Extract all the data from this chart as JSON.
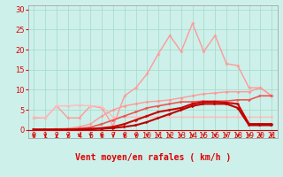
{
  "xlabel": "Vent moyen/en rafales ( km/h )",
  "bg_color": "#cdf0ea",
  "grid_color": "#aaddcc",
  "x_ticks": [
    0,
    1,
    2,
    3,
    4,
    5,
    6,
    7,
    8,
    9,
    10,
    11,
    12,
    13,
    14,
    15,
    16,
    17,
    18,
    19,
    20,
    21
  ],
  "y_ticks": [
    0,
    5,
    10,
    15,
    20,
    25,
    30
  ],
  "ylim": [
    -2,
    31
  ],
  "xlim": [
    -0.5,
    21.5
  ],
  "line_spiky": {
    "x": [
      0,
      1,
      2,
      3,
      4,
      5,
      6,
      7,
      8,
      9,
      10,
      11,
      12,
      13,
      14,
      15,
      16,
      17,
      18,
      19,
      20,
      21
    ],
    "y": [
      3.0,
      3.0,
      6.0,
      3.0,
      3.0,
      6.0,
      5.5,
      1.0,
      8.5,
      10.5,
      14.0,
      19.0,
      23.5,
      19.5,
      26.5,
      19.5,
      23.5,
      16.5,
      16.0,
      10.5,
      10.5,
      8.5
    ],
    "color": "#ff9999",
    "lw": 1.0,
    "marker": "*",
    "ms": 3.5
  },
  "line_medium1": {
    "x": [
      0,
      1,
      2,
      3,
      4,
      5,
      6,
      7,
      8,
      9,
      10,
      11,
      12,
      13,
      14,
      15,
      16,
      17,
      18,
      19,
      20,
      21
    ],
    "y": [
      3.2,
      3.0,
      6.0,
      6.0,
      6.2,
      6.0,
      5.8,
      3.2,
      3.2,
      3.2,
      3.2,
      3.2,
      3.2,
      3.2,
      3.2,
      3.2,
      3.2,
      3.2,
      3.2,
      3.2,
      3.2,
      3.2
    ],
    "color": "#ffbbbb",
    "lw": 1.0,
    "marker": "D",
    "ms": 2.0
  },
  "line_curve1": {
    "x": [
      0,
      1,
      2,
      3,
      4,
      5,
      6,
      7,
      8,
      9,
      10,
      11,
      12,
      13,
      14,
      15,
      16,
      17,
      18,
      19,
      20,
      21
    ],
    "y": [
      0.2,
      0.2,
      0.3,
      0.4,
      0.8,
      1.5,
      3.5,
      5.0,
      6.0,
      6.5,
      7.0,
      7.2,
      7.5,
      8.0,
      8.5,
      9.0,
      9.2,
      9.5,
      9.5,
      9.5,
      10.5,
      8.5
    ],
    "color": "#ff9999",
    "lw": 1.0,
    "marker": "D",
    "ms": 2.0
  },
  "line_curve2": {
    "x": [
      0,
      1,
      2,
      3,
      4,
      5,
      6,
      7,
      8,
      9,
      10,
      11,
      12,
      13,
      14,
      15,
      16,
      17,
      18,
      19,
      20,
      21
    ],
    "y": [
      0.1,
      0.1,
      0.2,
      0.2,
      0.4,
      0.7,
      1.5,
      2.5,
      3.5,
      4.5,
      5.5,
      6.0,
      6.5,
      7.0,
      7.0,
      7.2,
      7.2,
      7.2,
      7.5,
      7.5,
      8.5,
      8.5
    ],
    "color": "#ee5555",
    "lw": 1.2,
    "marker": ">",
    "ms": 2.5
  },
  "line_curve3": {
    "x": [
      0,
      1,
      2,
      3,
      4,
      5,
      6,
      7,
      8,
      9,
      10,
      11,
      12,
      13,
      14,
      15,
      16,
      17,
      18,
      19,
      20,
      21
    ],
    "y": [
      0.1,
      0.1,
      0.1,
      0.1,
      0.2,
      0.3,
      0.5,
      0.8,
      1.5,
      2.5,
      3.5,
      4.5,
      5.0,
      5.5,
      6.5,
      7.0,
      7.0,
      6.8,
      6.5,
      1.5,
      1.5,
      1.5
    ],
    "color": "#cc0000",
    "lw": 1.5,
    "marker": ">",
    "ms": 2.5
  },
  "line_curve4": {
    "x": [
      0,
      1,
      2,
      3,
      4,
      5,
      6,
      7,
      8,
      9,
      10,
      11,
      12,
      13,
      14,
      15,
      16,
      17,
      18,
      19,
      20,
      21
    ],
    "y": [
      0.1,
      0.1,
      0.1,
      0.1,
      0.1,
      0.2,
      0.3,
      0.5,
      0.8,
      1.2,
      2.0,
      3.0,
      4.0,
      5.0,
      6.0,
      6.5,
      6.5,
      6.5,
      5.5,
      1.2,
      1.2,
      1.2
    ],
    "color": "#bb0000",
    "lw": 1.5,
    "marker": ">",
    "ms": 2.5
  },
  "xlabel_color": "#dd0000",
  "xlabel_fontsize": 7,
  "tick_color": "#dd0000",
  "tick_fontsize": 6,
  "arrow_color": "#dd0000"
}
